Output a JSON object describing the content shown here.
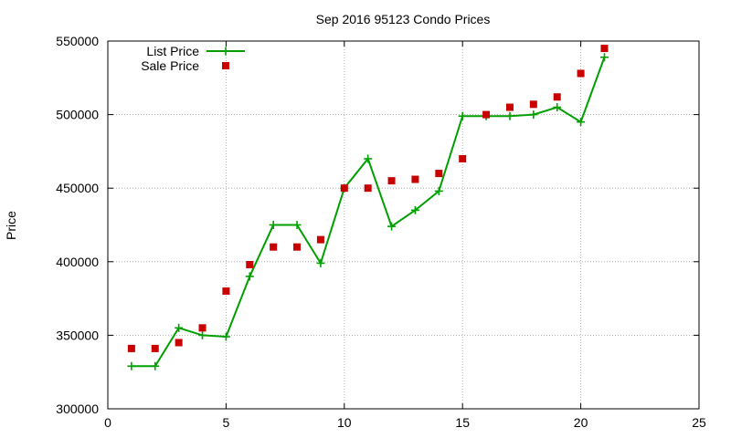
{
  "chart_data": {
    "type": "line",
    "title": "Sep 2016 95123 Condo Prices",
    "xlabel": "",
    "ylabel": "Price",
    "xlim": [
      0,
      25
    ],
    "ylim": [
      300000,
      550000
    ],
    "x_ticks": [
      0,
      5,
      10,
      15,
      20,
      25
    ],
    "y_ticks": [
      300000,
      350000,
      400000,
      450000,
      500000,
      550000
    ],
    "grid": true,
    "legend_position": "top-left",
    "series": [
      {
        "name": "List Price",
        "style": "line+cross",
        "color": "#00a000",
        "x": [
          1,
          2,
          3,
          4,
          5,
          6,
          7,
          8,
          9,
          10,
          11,
          12,
          13,
          14,
          15,
          16,
          17,
          18,
          19,
          20,
          21
        ],
        "values": [
          329000,
          329000,
          355000,
          350000,
          349000,
          390000,
          425000,
          425000,
          399000,
          450000,
          470000,
          424000,
          435000,
          448000,
          499000,
          499000,
          499000,
          500000,
          505000,
          495000,
          539000
        ]
      },
      {
        "name": "Sale Price",
        "style": "square-points",
        "color": "#c80000",
        "x": [
          1,
          2,
          3,
          4,
          5,
          6,
          7,
          8,
          9,
          10,
          11,
          12,
          13,
          14,
          15,
          16,
          17,
          18,
          19,
          20,
          21
        ],
        "values": [
          341000,
          341000,
          345000,
          355000,
          380000,
          398000,
          410000,
          410000,
          415000,
          450000,
          450000,
          455000,
          456000,
          460000,
          470000,
          500000,
          505000,
          507000,
          512000,
          528000,
          545000
        ]
      }
    ]
  }
}
